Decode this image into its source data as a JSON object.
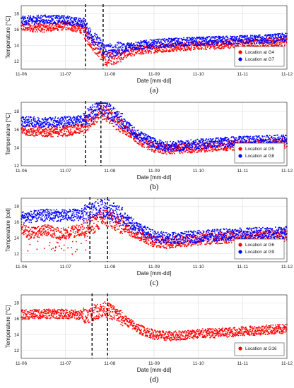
{
  "chart_data": [
    {
      "type": "scatter",
      "panel_label": "(a)",
      "xlabel": "Date [mm-dd]",
      "ylabel": "Temperature [°C]",
      "x_ticks": [
        "11-06",
        "11-07",
        "11-08",
        "11-09",
        "11-10",
        "11-11",
        "11-12"
      ],
      "xlim": [
        "11-06",
        "11-12"
      ],
      "y_ticks": [
        12,
        14,
        16,
        18
      ],
      "ylim": [
        11,
        19
      ],
      "grid": true,
      "legend_position": "bottom-right",
      "vlines": [
        1.45,
        1.85
      ],
      "series": [
        {
          "name": "Location at G4",
          "color": "#ff0000",
          "x": [
            0,
            0.5,
            1.0,
            1.4,
            1.5,
            1.65,
            1.8,
            1.9,
            2.1,
            2.5,
            3.0,
            3.5,
            4.0,
            4.5,
            5.0,
            5.5,
            6.0
          ],
          "y": [
            16.3,
            16.2,
            16.5,
            16.0,
            15.0,
            14.0,
            13.0,
            12.2,
            12.5,
            13.2,
            13.6,
            13.8,
            14.0,
            14.1,
            14.2,
            14.3,
            14.5
          ]
        },
        {
          "name": "Location at G7",
          "color": "#0000ff",
          "x": [
            0,
            0.5,
            1.0,
            1.4,
            1.5,
            1.65,
            1.8,
            1.9,
            2.1,
            2.5,
            3.0,
            3.5,
            4.0,
            4.5,
            5.0,
            5.5,
            6.0
          ],
          "y": [
            17.1,
            17.3,
            17.2,
            16.8,
            15.8,
            14.8,
            14.0,
            13.3,
            13.4,
            13.9,
            14.2,
            14.4,
            14.5,
            14.6,
            14.7,
            14.8,
            15.0
          ]
        }
      ]
    },
    {
      "type": "scatter",
      "panel_label": "(b)",
      "xlabel": "Date [mm-dd]",
      "ylabel": "Temperature [°C]",
      "x_ticks": [
        "11-06",
        "11-07",
        "11-08",
        "11-09",
        "11-10",
        "11-11",
        "11-12"
      ],
      "xlim": [
        "11-06",
        "11-12"
      ],
      "y_ticks": [
        12,
        14,
        16,
        18
      ],
      "ylim": [
        12,
        19
      ],
      "grid": true,
      "legend_position": "bottom-right",
      "vlines": [
        1.45,
        1.8
      ],
      "series": [
        {
          "name": "Location at G5",
          "color": "#ff0000",
          "x": [
            0,
            0.5,
            1.0,
            1.4,
            1.6,
            1.8,
            2.0,
            2.3,
            2.6,
            3.0,
            3.3,
            3.6,
            4.0,
            4.5,
            5.0,
            5.5,
            6.0
          ],
          "y": [
            16.0,
            15.7,
            15.8,
            16.1,
            17.2,
            18.0,
            17.5,
            16.2,
            15.0,
            14.0,
            13.8,
            13.9,
            14.0,
            14.2,
            14.3,
            14.4,
            14.5
          ]
        },
        {
          "name": "Location at G8",
          "color": "#0000ff",
          "x": [
            0,
            0.5,
            1.0,
            1.4,
            1.6,
            1.8,
            2.0,
            2.3,
            2.6,
            3.0,
            3.3,
            3.6,
            4.0,
            4.5,
            5.0,
            5.5,
            6.0
          ],
          "y": [
            16.9,
            16.8,
            16.9,
            17.0,
            17.8,
            18.6,
            18.0,
            16.8,
            15.5,
            14.5,
            14.1,
            14.2,
            14.4,
            14.6,
            14.7,
            14.8,
            14.9
          ]
        }
      ]
    },
    {
      "type": "scatter",
      "panel_label": "(c)",
      "xlabel": "Date [mm-dd]",
      "ylabel": "Temperature [cel]",
      "x_ticks": [
        "11-06",
        "11-07",
        "11-08",
        "11-09",
        "11-10",
        "11-11",
        "11-12"
      ],
      "xlim": [
        "11-06",
        "11-12"
      ],
      "y_ticks": [
        12,
        14,
        16,
        18
      ],
      "ylim": [
        11,
        19
      ],
      "grid": true,
      "legend_position": "bottom-right",
      "vlines": [
        1.55,
        1.95
      ],
      "series": [
        {
          "name": "Location at G6",
          "color": "#ff0000",
          "x": [
            0,
            0.3,
            0.6,
            0.9,
            1.2,
            1.5,
            1.7,
            1.9,
            2.1,
            2.4,
            2.7,
            3.0,
            3.3,
            3.6,
            4.0,
            4.5,
            5.0,
            5.5,
            6.0
          ],
          "y": [
            15.0,
            14.6,
            15.0,
            14.5,
            14.8,
            15.2,
            16.0,
            16.6,
            16.2,
            15.2,
            14.3,
            13.6,
            13.4,
            13.6,
            13.8,
            14.0,
            14.1,
            14.2,
            14.3
          ]
        },
        {
          "name": "Location at G9",
          "color": "#0000ff",
          "x": [
            0,
            0.3,
            0.6,
            0.9,
            1.2,
            1.5,
            1.7,
            1.9,
            2.1,
            2.4,
            2.7,
            3.0,
            3.3,
            3.6,
            4.0,
            4.5,
            5.0,
            5.5,
            6.0
          ],
          "y": [
            16.6,
            16.7,
            16.9,
            16.8,
            16.9,
            17.0,
            17.6,
            17.8,
            17.3,
            16.2,
            15.0,
            14.2,
            13.9,
            14.0,
            14.2,
            14.4,
            14.5,
            14.6,
            14.7
          ]
        }
      ]
    },
    {
      "type": "scatter",
      "panel_label": "(d)",
      "xlabel": "Date [mm-dd]",
      "ylabel": "Temperature [°C]",
      "x_ticks": [
        "11-06",
        "11-07",
        "11-08",
        "11-09",
        "11-10",
        "11-11",
        "11-12"
      ],
      "xlim": [
        "11-06",
        "11-12"
      ],
      "y_ticks": [
        12,
        14,
        16,
        18
      ],
      "ylim": [
        11,
        19
      ],
      "grid": true,
      "legend_position": "bottom-right",
      "vlines": [
        1.6,
        1.95
      ],
      "series": [
        {
          "name": "Location at G16",
          "color": "#ff0000",
          "x": [
            0,
            0.5,
            1.0,
            1.5,
            1.7,
            1.9,
            2.1,
            2.4,
            2.7,
            3.0,
            3.3,
            3.6,
            4.0,
            4.5,
            5.0,
            5.5,
            6.0
          ],
          "y": [
            16.5,
            16.6,
            16.6,
            16.4,
            16.9,
            17.2,
            16.7,
            15.6,
            14.6,
            14.0,
            13.8,
            13.9,
            14.1,
            14.2,
            14.4,
            14.6,
            14.7
          ]
        }
      ]
    }
  ]
}
